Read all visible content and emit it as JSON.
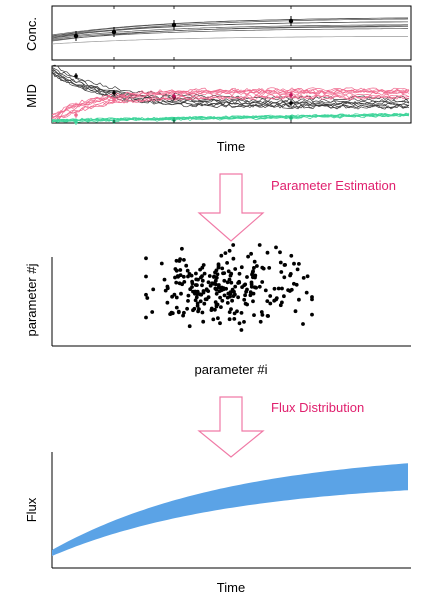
{
  "panel_conc": {
    "ylabel": "Conc."
  },
  "panel_mid": {
    "ylabel": "MID"
  },
  "panel_top": {
    "xlabel": "Time"
  },
  "step_1": {
    "label": "Parameter Estimation"
  },
  "panel_scatter": {
    "xlabel": "parameter #i",
    "ylabel": "parameter #j"
  },
  "step_2": {
    "label": "Flux Distribution"
  },
  "panel_flux": {
    "xlabel": "Time",
    "ylabel": "Flux"
  },
  "colors": {
    "accent_text": "#e0206e",
    "arrow_stroke": "#f07aa6",
    "mid_pink": "#f06b8f",
    "mid_green": "#3fd49a",
    "flux_band": "#5ba3e6",
    "axis": "#000000",
    "gray_trace": "#7a7a7a"
  }
}
